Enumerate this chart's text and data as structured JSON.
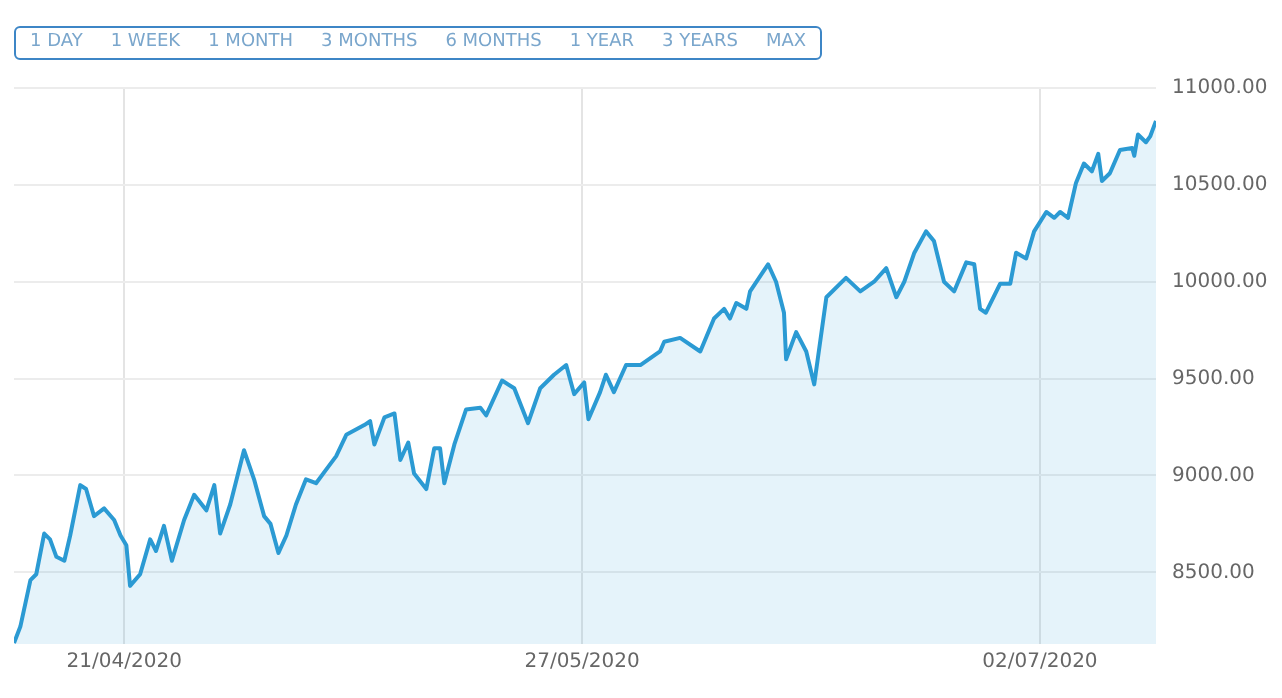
{
  "chart_data": {
    "type": "area",
    "annotations": [
      "1 DAY",
      "1 WEEK",
      "1 MONTH",
      "3 MONTHS",
      "6 MONTHS",
      "1 YEAR",
      "3 YEARS",
      "MAX"
    ],
    "x": [
      "2020-04-12T08:00",
      "2020-04-12T20:00",
      "2020-04-13T15:00",
      "2020-04-14T02:00",
      "2020-04-14T17:00",
      "2020-04-15T04:00",
      "2020-04-15T16:00",
      "2020-04-16T07:00",
      "2020-04-16T18:00",
      "2020-04-17T13:00",
      "2020-04-18T00:00",
      "2020-04-18T15:00",
      "2020-04-19T10:00",
      "2020-04-20T05:00",
      "2020-04-20T17:00",
      "2020-04-21T04:00",
      "2020-04-21T11:00",
      "2020-04-22T06:00",
      "2020-04-23T01:00",
      "2020-04-23T12:00",
      "2020-04-24T03:00",
      "2020-04-24T18:00",
      "2020-04-25T17:00",
      "2020-04-26T12:00",
      "2020-04-27T11:00",
      "2020-04-28T02:00",
      "2020-04-28T13:00",
      "2020-04-29T08:00",
      "2020-04-30T10:00",
      "2020-05-01T05:00",
      "2020-05-02T00:00",
      "2020-05-02T12:00",
      "2020-05-03T03:00",
      "2020-05-03T18:00",
      "2020-05-04T12:00",
      "2020-05-05T07:00",
      "2020-05-06T02:00",
      "2020-05-06T21:00",
      "2020-05-07T16:00",
      "2020-05-08T11:00",
      "2020-05-09T21:00",
      "2020-05-10T08:00",
      "2020-05-10T16:00",
      "2020-05-11T11:00",
      "2020-05-12T06:00",
      "2020-05-12T17:00",
      "2020-05-13T08:00",
      "2020-05-13T19:00",
      "2020-05-14T18:00",
      "2020-05-15T09:00",
      "2020-05-15T20:00",
      "2020-05-16T04:00",
      "2020-05-16T23:00",
      "2020-05-17T21:00",
      "2020-05-19T00:00",
      "2020-05-19T11:00",
      "2020-05-20T17:00",
      "2020-05-21T16:00",
      "2020-05-22T18:00",
      "2020-05-23T17:00",
      "2020-05-24T19:00",
      "2020-05-25T18:00",
      "2020-05-26T09:00",
      "2020-05-27T04:00",
      "2020-05-27T12:00",
      "2020-05-28T10:00",
      "2020-05-28T21:00",
      "2020-05-29T12:00",
      "2020-05-30T11:00",
      "2020-05-31T14:00",
      "2020-06-02T03:00",
      "2020-06-02T11:00",
      "2020-06-03T17:00",
      "2020-06-05T07:00",
      "2020-06-06T09:00",
      "2020-06-07T04:00",
      "2020-06-07T15:00",
      "2020-06-08T03:00",
      "2020-06-08T22:00",
      "2020-06-09T05:00",
      "2020-06-10T15:00",
      "2020-06-11T06:00",
      "2020-06-11T21:00",
      "2020-06-12T01:00",
      "2020-06-12T20:00",
      "2020-06-13T15:00",
      "2020-06-14T06:00",
      "2020-06-15T05:00",
      "2020-06-16T18:00",
      "2020-06-17T21:00",
      "2020-06-18T23:00",
      "2020-06-19T22:00",
      "2020-06-20T17:00",
      "2020-06-21T08:00",
      "2020-06-22T03:00",
      "2020-06-23T01:00",
      "2020-06-23T16:00",
      "2020-06-24T11:00",
      "2020-06-25T06:00",
      "2020-06-26T05:00",
      "2020-06-26T20:00",
      "2020-06-27T07:00",
      "2020-06-27T18:00",
      "2020-06-28T21:00",
      "2020-06-29T16:00",
      "2020-06-30T03:00",
      "2020-06-30T22:00",
      "2020-07-01T13:00",
      "2020-07-02T12:00",
      "2020-07-03T03:00",
      "2020-07-03T14:00",
      "2020-07-04T05:00",
      "2020-07-04T20:00",
      "2020-07-05T11:00",
      "2020-07-06T02:00",
      "2020-07-06T14:00",
      "2020-07-06T21:00",
      "2020-07-07T12:00",
      "2020-07-08T07:00",
      "2020-07-09T06:00",
      "2020-07-09T10:00",
      "2020-07-09T17:00",
      "2020-07-10T08:00",
      "2020-07-10T16:00",
      "2020-07-11T03:00"
    ],
    "series": [
      {
        "color": "#2b9ad3",
        "values": [
          8135,
          8220,
          8460,
          8490,
          8700,
          8670,
          8580,
          8560,
          8690,
          8950,
          8930,
          8790,
          8830,
          8770,
          8690,
          8640,
          8430,
          8490,
          8670,
          8610,
          8740,
          8560,
          8770,
          8900,
          8820,
          8950,
          8700,
          8850,
          9130,
          8980,
          8790,
          8750,
          8600,
          8690,
          8850,
          8980,
          8960,
          9030,
          9100,
          9210,
          9260,
          9280,
          9160,
          9300,
          9320,
          9080,
          9170,
          9010,
          8930,
          9140,
          9140,
          8960,
          9160,
          9340,
          9350,
          9310,
          9490,
          9450,
          9270,
          9450,
          9520,
          9570,
          9420,
          9480,
          9290,
          9430,
          9520,
          9430,
          9570,
          9570,
          9640,
          9690,
          9710,
          9640,
          9810,
          9860,
          9810,
          9890,
          9860,
          9950,
          10090,
          10000,
          9840,
          9600,
          9740,
          9640,
          9470,
          9920,
          10020,
          9950,
          10000,
          10070,
          9920,
          10000,
          10150,
          10260,
          10210,
          10000,
          9950,
          10100,
          10090,
          9860,
          9840,
          9990,
          9990,
          10150,
          10120,
          10260,
          10360,
          10330,
          10360,
          10330,
          10510,
          10610,
          10570,
          10660,
          10520,
          10560,
          10680,
          10690,
          10650,
          10760,
          10720,
          10750,
          10830
        ]
      }
    ],
    "xlim": [
      "2020-04-12T08:00",
      "2020-07-11T03:00"
    ],
    "xticks": [
      {
        "value": "2020-04-21",
        "label": "21/04/2020"
      },
      {
        "value": "2020-05-27",
        "label": "27/05/2020"
      },
      {
        "value": "2020-07-02",
        "label": "02/07/2020"
      }
    ],
    "ylim": [
      8130,
      11000
    ],
    "yticks": [
      {
        "value": 8500,
        "label": "8500.00"
      },
      {
        "value": 9000,
        "label": "9000.00"
      },
      {
        "value": 9500,
        "label": "9500.00"
      },
      {
        "value": 10000,
        "label": "10000.00"
      },
      {
        "value": 10500,
        "label": "10500.00"
      },
      {
        "value": 11000,
        "label": "11000.00"
      }
    ],
    "grid": true,
    "legend": false,
    "marker": "none",
    "line_style": "solid"
  }
}
